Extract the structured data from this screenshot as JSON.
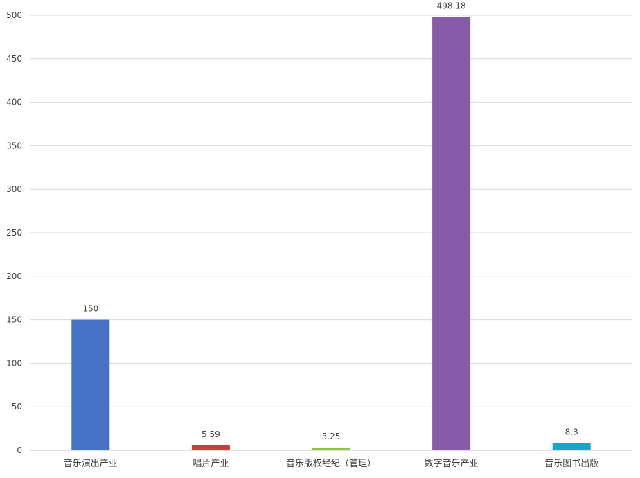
{
  "chart_data": {
    "type": "bar",
    "title": "",
    "xlabel": "",
    "ylabel": "",
    "categories": [
      "音乐演出产业",
      "唱片产业",
      "音乐版权经纪（管理）",
      "数字音乐产业",
      "音乐图书出版"
    ],
    "values": [
      150,
      5.59,
      3.25,
      498.18,
      8.3
    ],
    "data_labels": [
      "150",
      "5.59",
      "3.25",
      "498.18",
      "8.3"
    ],
    "colors": [
      "#4472c4",
      "#d13a3a",
      "#8cc63f",
      "#875ba8",
      "#12a9c4"
    ],
    "ylim": [
      0,
      500
    ],
    "yticks": [
      0,
      50,
      100,
      150,
      200,
      250,
      300,
      350,
      400,
      450,
      500
    ],
    "grid": true,
    "legend": "none"
  }
}
